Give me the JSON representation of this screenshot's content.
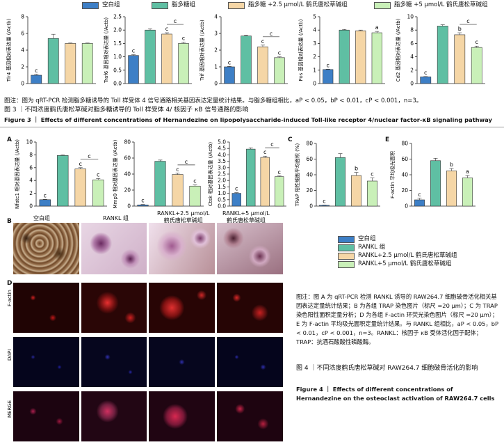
{
  "colors": {
    "blank": "#3d7fc6",
    "model": "#5fbfa3",
    "low": "#f5d6a6",
    "high": "#c9f0b8"
  },
  "fig3": {
    "legend": [
      "空白组",
      "脂多糖组",
      "脂多糖 +2.5 μmol/L 鹤氏唐松草碱组",
      "脂多糖 +5 μmol/L 鹤氏唐松草碱组"
    ],
    "caption_note": "图注：图为 qRT-PCR 检测脂多糖诱导的 Toll 样受体 4 信号通路相关基因表达定量统计结果。与脂多糖组相比，aP < 0.05，bP < 0.01，cP < 0.001，n=3。",
    "title_cn": "图 3 ｜不同浓度鹤氏唐松草碱对脂多糖诱导的 Toll 样受体 4/ 核因子 κB 信号通路的影响",
    "title_en": "Figure 3 ｜ Effects of different concentrations of Hernandezine on lipopolysaccharide-induced Toll-like receptor 4/nuclear factor-κB signaling pathway"
  },
  "fig4": {
    "legend": [
      "空白组",
      "RANKL 组",
      "RANKL+2.5 μmol/L 鹤氏唐松草碱组",
      "RANKL+5 μmol/L 鹤氏唐松草碱组"
    ],
    "xlabels": [
      "空白组",
      "RANKL 组",
      "RANKL+2.5 μmol/L\n鹤氏唐松草碱组",
      "RANKL+5 μmol/L\n鹤氏唐松草碱组"
    ],
    "panel_letters": [
      "A",
      "B",
      "C",
      "D",
      "E"
    ],
    "row_labels": [
      "F-actin",
      "DAPI",
      "MERGE"
    ],
    "note": "图注：图 A 为 qRT-PCR 检测 RANKL 诱导的 RAW264.7 细胞破骨活化相关基因表达定量统计结果；B 为各组 TRAP 染色图片（标尺 =20 μm）；C 为 TRAP 染色阳性面积定量分析；D 为各组 F-actin 环荧光染色图片（标尺 =20 μm）；E 为 F-actin 平均吸光面积定量统计结果。与 RANKL 组相比，aP < 0.05，bP < 0.01，cP < 0.001，n=3。RANKL：核因子 κB 受体活化因子配体；TRAP：抗酒石酸酸性磷酸酶。",
    "title_cn": "图 4 ｜不同浓度鹤氏唐松草碱对 RAW264.7 细胞破骨活化的影响",
    "title_en": "Figure 4 ｜ Effects of different concentrations of Hernandezine on the osteoclast activation of RAW264.7 cells"
  },
  "chart_data": [
    {
      "type": "bar",
      "ylabel": "Tlr4 基因相对表达量 (/Actb)",
      "ylim": [
        0,
        8
      ],
      "ticks": [
        0,
        2,
        4,
        6,
        8
      ],
      "values": [
        1.0,
        5.4,
        4.8,
        4.8
      ],
      "errors": [
        0.1,
        0.5,
        0.05,
        0.05
      ],
      "labels": [
        "c",
        "",
        "",
        ""
      ],
      "bracket": false
    },
    {
      "type": "bar",
      "ylabel": "Traf6 基因相对表达量 (/Actb)",
      "ylim": [
        0,
        2.5
      ],
      "ticks": [
        0.0,
        0.5,
        1.0,
        1.5,
        2.0,
        2.5
      ],
      "values": [
        1.05,
        2.0,
        1.85,
        1.5
      ],
      "errors": [
        0.03,
        0.05,
        0.05,
        0.05
      ],
      "labels": [
        "c",
        "",
        "c",
        "c"
      ],
      "bracket": true
    },
    {
      "type": "bar",
      "ylabel": "Trif 基因相对表达量 (/Actb)",
      "ylim": [
        0,
        4
      ],
      "ticks": [
        0,
        1,
        2,
        3,
        4
      ],
      "values": [
        1.0,
        2.85,
        2.2,
        1.55
      ],
      "errors": [
        0.03,
        0.05,
        0.1,
        0.05
      ],
      "labels": [
        "c",
        "",
        "c",
        "c"
      ],
      "bracket": true
    },
    {
      "type": "bar",
      "ylabel": "Fos 基因相对表达量 (/Actb)",
      "ylim": [
        0,
        5
      ],
      "ticks": [
        0,
        1,
        2,
        3,
        4,
        5
      ],
      "values": [
        1.05,
        4.0,
        3.95,
        3.8
      ],
      "errors": [
        0.03,
        0.05,
        0.05,
        0.1
      ],
      "labels": [
        "c",
        "",
        "",
        "a"
      ],
      "bracket": false
    },
    {
      "type": "bar",
      "ylabel": "Cd2 基因相对表达量 (/Actb)",
      "ylim": [
        0,
        10
      ],
      "ticks": [
        0,
        2,
        4,
        6,
        8,
        10
      ],
      "values": [
        1.0,
        8.6,
        7.3,
        5.4
      ],
      "errors": [
        0.05,
        0.2,
        0.3,
        0.2
      ],
      "labels": [
        "c",
        "",
        "b",
        "c"
      ],
      "bracket": true
    },
    {
      "type": "bar",
      "ylabel": "Nfatc1 相对基因表达量 (/Actb)",
      "ylim": [
        0,
        10
      ],
      "ticks": [
        0,
        2,
        4,
        6,
        8,
        10
      ],
      "values": [
        1.0,
        7.9,
        5.8,
        4.1
      ],
      "errors": [
        0.05,
        0.1,
        0.2,
        0.2
      ],
      "labels": [
        "c",
        "",
        "c",
        "c"
      ],
      "bracket": true
    },
    {
      "type": "bar",
      "ylabel": "Mmp9 相对基因表达量 (/Actb)",
      "ylim": [
        0,
        80
      ],
      "ticks": [
        0,
        20,
        40,
        60,
        80
      ],
      "values": [
        1.5,
        56.0,
        39.5,
        25.0
      ],
      "errors": [
        0.5,
        1.5,
        1.5,
        1.5
      ],
      "labels": [
        "c",
        "",
        "c",
        "c"
      ],
      "bracket": true
    },
    {
      "type": "bar",
      "ylabel": "Ctsk 相对基因表达量 (/Actb)",
      "ylim": [
        0,
        5
      ],
      "ticks": [
        0.0,
        0.5,
        1.0,
        1.5,
        2.0,
        2.5,
        3.0,
        3.5,
        4.0,
        4.5,
        5.0
      ],
      "values": [
        1.0,
        4.45,
        3.8,
        2.3
      ],
      "errors": [
        0.05,
        0.1,
        0.1,
        0.05
      ],
      "labels": [
        "c",
        "",
        "c",
        "c"
      ],
      "bracket": true
    },
    {
      "type": "bar",
      "ylabel": "TRAP 阳性细胞平均面积 (%)",
      "ylim": [
        0,
        80
      ],
      "ticks": [
        0,
        20,
        40,
        60,
        80
      ],
      "values": [
        1.0,
        62.0,
        39.0,
        32.0
      ],
      "errors": [
        0.3,
        5.0,
        4.0,
        4.0
      ],
      "labels": [
        "c",
        "",
        "b",
        "c"
      ],
      "bracket": false
    },
    {
      "type": "bar",
      "ylabel": "F-actin 平均吸光面积",
      "ylim": [
        0,
        80
      ],
      "ticks": [
        0,
        20,
        40,
        60,
        80
      ],
      "values": [
        8.0,
        58.0,
        45.0,
        36.0
      ],
      "errors": [
        2.0,
        3.0,
        3.0,
        3.0
      ],
      "labels": [
        "c",
        "",
        "b",
        "a"
      ],
      "bracket": false
    }
  ]
}
